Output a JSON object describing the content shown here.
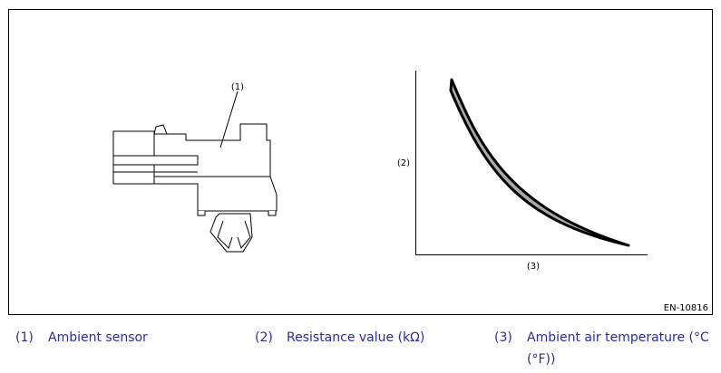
{
  "figure": {
    "callouts": [
      "(1)",
      "(2)",
      "(3)"
    ],
    "id": "EN-10816"
  },
  "legend": [
    {
      "number": "(1)",
      "text": "Ambient sensor"
    },
    {
      "number": "(2)",
      "text": "Resistance value (kΩ)"
    },
    {
      "number": "(3)",
      "text": "Ambient air temperature (°C (°F))"
    }
  ]
}
